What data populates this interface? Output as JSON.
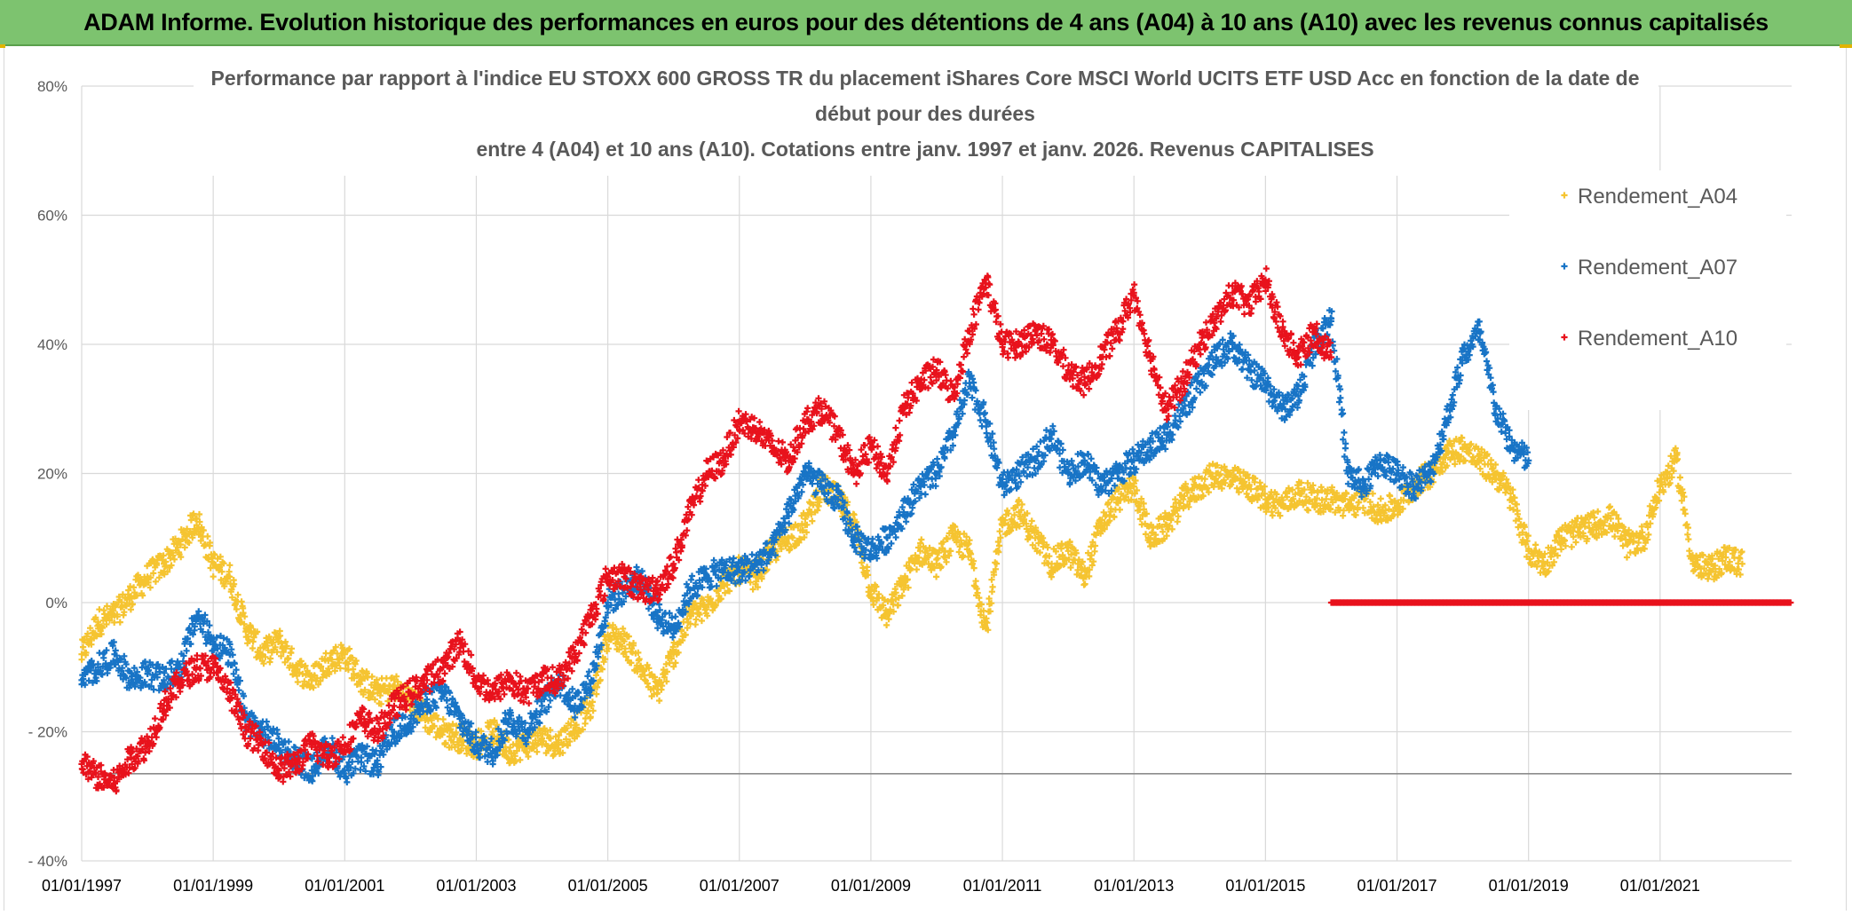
{
  "banner": {
    "title": "ADAM Informe. Evolution historique des performances en euros pour des détentions de 4 ans (A04) à 10 ans (A10) avec les revenus connus capitalisés"
  },
  "colors": {
    "banner_bg": "#7dc36f",
    "A04": "#f5c431",
    "A07": "#1874c6",
    "A10": "#e8121c",
    "grid": "#d9d9d9",
    "text": "#595959"
  },
  "chart_data": {
    "type": "scatter",
    "title_lines": [
      "Performance par rapport à l'indice EU STOXX 600 GROSS TR  du placement iShares Core MSCI World UCITS ETF USD Acc en fonction de la date de",
      "début pour des durées",
      "entre 4 (A04) et 10 ans (A10). Cotations entre janv. 1997 et janv. 2026. Revenus CAPITALISES"
    ],
    "xlim": [
      1997.0,
      2023.0
    ],
    "ylim": [
      -40,
      80
    ],
    "y_ticks": [
      -40,
      -20,
      0,
      20,
      40,
      60,
      80
    ],
    "y_tick_labels": [
      "- 40%",
      "- 20%",
      "0%",
      "20%",
      "40%",
      "60%",
      "80%"
    ],
    "x_ticks": [
      1997,
      1999,
      2001,
      2003,
      2005,
      2007,
      2009,
      2011,
      2013,
      2015,
      2017,
      2019,
      2021
    ],
    "x_tick_labels": [
      "01/01/1997",
      "01/01/1999",
      "01/01/2001",
      "01/01/2003",
      "01/01/2005",
      "01/01/2007",
      "01/01/2009",
      "01/01/2011",
      "01/01/2013",
      "01/01/2015",
      "01/01/2017",
      "01/01/2019",
      "01/01/2021"
    ],
    "reference_line_y": -26.5,
    "legend_position": "right",
    "marker": "+",
    "series": [
      {
        "name": "Rendement_A04",
        "key": "A04",
        "x": [
          1997.0,
          1997.25,
          1997.5,
          1997.75,
          1998.0,
          1998.25,
          1998.5,
          1998.75,
          1999.0,
          1999.25,
          1999.5,
          1999.75,
          2000.0,
          2000.25,
          2000.5,
          2000.75,
          2001.0,
          2001.25,
          2001.5,
          2001.75,
          2002.0,
          2002.25,
          2002.5,
          2002.75,
          2003.0,
          2003.25,
          2003.5,
          2003.75,
          2004.0,
          2004.25,
          2004.5,
          2004.75,
          2005.0,
          2005.25,
          2005.5,
          2005.75,
          2006.0,
          2006.25,
          2006.5,
          2006.75,
          2007.0,
          2007.25,
          2007.5,
          2007.75,
          2008.0,
          2008.25,
          2008.5,
          2008.75,
          2009.0,
          2009.25,
          2009.5,
          2009.75,
          2010.0,
          2010.25,
          2010.5,
          2010.75,
          2011.0,
          2011.25,
          2011.5,
          2011.75,
          2012.0,
          2012.25,
          2012.5,
          2012.75,
          2013.0,
          2013.25,
          2013.5,
          2013.75,
          2014.0,
          2014.25,
          2014.5,
          2014.75,
          2015.0,
          2015.25,
          2015.5,
          2015.75,
          2016.0,
          2016.25,
          2016.5,
          2016.75,
          2017.0,
          2017.25,
          2017.5,
          2017.75,
          2018.0,
          2018.25,
          2018.5,
          2018.75,
          2019.0,
          2019.25,
          2019.5,
          2019.75,
          2020.0,
          2020.25,
          2020.5,
          2020.75,
          2021.0,
          2021.25,
          2021.5,
          2021.75,
          2022.0,
          2022.25
        ],
        "y": [
          -8,
          -3,
          -2,
          1,
          4,
          6,
          9,
          13,
          6,
          4,
          -4,
          -8,
          -6,
          -10,
          -12,
          -9,
          -8,
          -12,
          -14,
          -13,
          -15,
          -18,
          -20,
          -21,
          -22,
          -20,
          -23,
          -22,
          -21,
          -22,
          -19,
          -16,
          -5,
          -6,
          -10,
          -14,
          -8,
          -2,
          -1,
          3,
          5,
          4,
          8,
          10,
          12,
          18,
          16,
          12,
          2,
          -2,
          3,
          8,
          6,
          10,
          8,
          -4,
          12,
          14,
          10,
          6,
          8,
          4,
          12,
          16,
          18,
          10,
          12,
          16,
          18,
          20,
          19,
          18,
          16,
          15,
          17,
          16,
          16,
          15,
          16,
          14,
          15,
          18,
          20,
          23,
          24,
          22,
          20,
          16,
          8,
          6,
          10,
          11,
          12,
          13,
          9,
          10,
          18,
          22,
          6,
          5,
          7,
          6
        ]
      },
      {
        "name": "Rendement_A07",
        "key": "A07",
        "x": [
          1997.0,
          1997.25,
          1997.5,
          1997.75,
          1998.0,
          1998.25,
          1998.5,
          1998.75,
          1999.0,
          1999.25,
          1999.5,
          1999.75,
          2000.0,
          2000.25,
          2000.5,
          2000.75,
          2001.0,
          2001.25,
          2001.5,
          2001.75,
          2002.0,
          2002.25,
          2002.5,
          2002.75,
          2003.0,
          2003.25,
          2003.5,
          2003.75,
          2004.0,
          2004.25,
          2004.5,
          2004.75,
          2005.0,
          2005.25,
          2005.5,
          2005.75,
          2006.0,
          2006.25,
          2006.5,
          2006.75,
          2007.0,
          2007.25,
          2007.5,
          2007.75,
          2008.0,
          2008.25,
          2008.5,
          2008.75,
          2009.0,
          2009.25,
          2009.5,
          2009.75,
          2010.0,
          2010.25,
          2010.5,
          2010.75,
          2011.0,
          2011.25,
          2011.5,
          2011.75,
          2012.0,
          2012.25,
          2012.5,
          2012.75,
          2013.0,
          2013.25,
          2013.5,
          2013.75,
          2014.0,
          2014.25,
          2014.5,
          2014.75,
          2015.0,
          2015.25,
          2015.5,
          2015.75,
          2016.0,
          2016.25,
          2016.5,
          2016.75,
          2017.0,
          2017.25,
          2017.5,
          2017.75,
          2018.0,
          2018.25,
          2018.5,
          2018.75,
          2019.0
        ],
        "y": [
          -12,
          -10,
          -8,
          -12,
          -11,
          -12,
          -10,
          -2,
          -6,
          -8,
          -18,
          -20,
          -22,
          -24,
          -26,
          -22,
          -26,
          -24,
          -25,
          -20,
          -18,
          -15,
          -14,
          -18,
          -22,
          -23,
          -18,
          -20,
          -16,
          -12,
          -16,
          -12,
          0,
          2,
          4,
          -2,
          -4,
          2,
          4,
          5,
          5,
          6,
          8,
          14,
          20,
          18,
          16,
          10,
          8,
          10,
          14,
          18,
          20,
          26,
          34,
          28,
          18,
          20,
          22,
          26,
          20,
          22,
          18,
          20,
          22,
          24,
          26,
          30,
          34,
          38,
          40,
          36,
          34,
          30,
          32,
          40,
          44,
          20,
          18,
          22,
          20,
          18,
          20,
          28,
          38,
          42,
          30,
          24,
          22
        ]
      },
      {
        "name": "Rendement_A10",
        "key": "A10",
        "x": [
          1997.0,
          1997.25,
          1997.5,
          1997.75,
          1998.0,
          1998.25,
          1998.5,
          1998.75,
          1999.0,
          1999.25,
          1999.5,
          1999.75,
          2000.0,
          2000.25,
          2000.5,
          2000.75,
          2001.0,
          2001.25,
          2001.5,
          2001.75,
          2002.0,
          2002.25,
          2002.5,
          2002.75,
          2003.0,
          2003.25,
          2003.5,
          2003.75,
          2004.0,
          2004.25,
          2004.5,
          2004.75,
          2005.0,
          2005.25,
          2005.5,
          2005.75,
          2006.0,
          2006.25,
          2006.5,
          2006.75,
          2007.0,
          2007.25,
          2007.5,
          2007.75,
          2008.0,
          2008.25,
          2008.5,
          2008.75,
          2009.0,
          2009.25,
          2009.5,
          2009.75,
          2010.0,
          2010.25,
          2010.5,
          2010.75,
          2011.0,
          2011.25,
          2011.5,
          2011.75,
          2012.0,
          2012.25,
          2012.5,
          2012.75,
          2013.0,
          2013.25,
          2013.5,
          2013.75,
          2014.0,
          2014.25,
          2014.5,
          2014.75,
          2015.0,
          2015.25,
          2015.5,
          2015.75,
          2016.0
        ],
        "y": [
          -25,
          -27,
          -28,
          -24,
          -22,
          -16,
          -12,
          -10,
          -10,
          -14,
          -20,
          -22,
          -26,
          -25,
          -22,
          -24,
          -22,
          -18,
          -20,
          -16,
          -14,
          -12,
          -10,
          -6,
          -12,
          -14,
          -12,
          -14,
          -12,
          -12,
          -8,
          -2,
          4,
          4,
          2,
          2,
          6,
          14,
          20,
          22,
          28,
          27,
          24,
          22,
          28,
          30,
          26,
          20,
          24,
          20,
          30,
          34,
          36,
          32,
          42,
          50,
          40,
          40,
          42,
          40,
          36,
          34,
          38,
          42,
          48,
          38,
          30,
          34,
          40,
          44,
          48,
          46,
          50,
          42,
          38,
          42,
          38
        ]
      },
      {
        "name": "A10 zero band",
        "key": "A10",
        "legend": false,
        "x_start": 2016.0,
        "x_end": 2023.0,
        "y": 0
      }
    ]
  },
  "legend": {
    "items": [
      {
        "label": "Rendement_A04",
        "key": "A04"
      },
      {
        "label": "Rendement_A07",
        "key": "A07"
      },
      {
        "label": "Rendement_A10",
        "key": "A10"
      }
    ]
  }
}
